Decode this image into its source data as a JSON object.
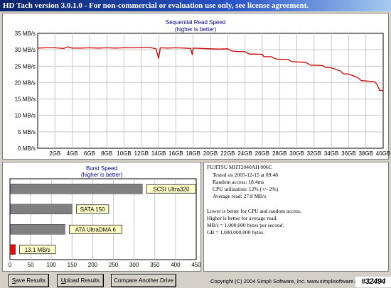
{
  "window": {
    "title": "HD Tach version 3.0.1.0  - For non-commercial or evaluation use only, see license agreement."
  },
  "read_chart": {
    "title": "Sequential Read Speed",
    "subtitle": "(higher is better)"
  },
  "burst_chart": {
    "title": "Burst Speed",
    "subtitle": "(higher is better)"
  },
  "info": {
    "drive": "FUJITSU MHT2040AH 006C",
    "tested_on": "Tested on 2005-12-15 at 09:48",
    "random_access": "Random access: 18.4ms",
    "cpu": "CPU utilization: 12% (+/- 2%)",
    "average_read": "Average read: 27.8 MB/s",
    "note1": "Lower is better for CPU and random access.",
    "note2": "Higher is better for average read.",
    "note3": "MB/s = 1,000,000 bytes per second.",
    "note4": "GB = 1,000,000,000 bytes."
  },
  "buttons": {
    "save_first": "S",
    "save_rest": "ave Results",
    "upload_first": "U",
    "upload_rest": "pload Results",
    "compare": "Compare Another Drive"
  },
  "footer": {
    "copyright": "Copyright (C) 2004 Simpli Software, Inc. www.simplisoftware.com",
    "stamp": "#32494"
  },
  "chart_data": [
    {
      "type": "line",
      "title": "Sequential Read Speed",
      "subtitle": "(higher is better)",
      "x_unit": "GB",
      "xlim": [
        0,
        40
      ],
      "x_ticks": [
        2,
        4,
        6,
        8,
        10,
        12,
        14,
        16,
        18,
        20,
        22,
        24,
        26,
        28,
        30,
        32,
        34,
        36,
        38,
        40
      ],
      "x_tick_labels": [
        "2GB",
        "4GB",
        "6GB",
        "8GB",
        "10GB",
        "12GB",
        "14GB",
        "16GB",
        "18GB",
        "20GB",
        "22GB",
        "24GB",
        "26GB",
        "28GB",
        "30GB",
        "32GB",
        "34GB",
        "36GB",
        "38GB",
        "40GB"
      ],
      "ylim": [
        0,
        35
      ],
      "y_ticks": [
        0,
        5,
        10,
        15,
        20,
        25,
        30,
        35
      ],
      "y_tick_labels": [
        "0 MB/s",
        "5 MB/s",
        "10 MB/s",
        "15 MB/s",
        "20 MB/s",
        "25 MB/s",
        "30 MB/s",
        "35 MB/s"
      ],
      "grid": true,
      "series": [
        {
          "color": "#cc0000",
          "x": [
            0,
            1,
            2,
            3,
            3.5,
            4,
            5,
            6,
            7,
            8,
            9,
            10,
            11,
            12,
            13,
            13.7,
            14,
            14.2,
            15,
            16,
            17,
            17.7,
            17.9,
            18,
            19,
            20,
            21,
            22,
            22.5,
            23,
            24,
            24.5,
            25,
            26,
            26.2,
            27,
            27.6,
            28,
            29,
            29.4,
            30,
            31,
            31.6,
            32,
            33,
            33.3,
            34,
            35,
            35.4,
            36,
            37,
            37.5,
            38,
            39,
            39.3,
            39.6,
            40
          ],
          "y": [
            30.5,
            30.6,
            30.6,
            30.4,
            30.9,
            30.5,
            30.5,
            30.6,
            30.5,
            30.6,
            30.5,
            30.6,
            30.6,
            30.7,
            30.7,
            30.3,
            27.3,
            30.6,
            30.5,
            30.6,
            30.5,
            30.4,
            28.5,
            30.5,
            30.4,
            30.3,
            30.2,
            30.3,
            29.6,
            29.5,
            29.4,
            28.7,
            28.7,
            28.6,
            27.9,
            27.9,
            27.2,
            27.1,
            27.1,
            26.4,
            26.3,
            26.2,
            25.3,
            25.3,
            25.2,
            24.6,
            24.5,
            23.6,
            22.7,
            22.6,
            21.6,
            20.6,
            20.5,
            20.3,
            19.4,
            17.6,
            17.6
          ]
        }
      ]
    },
    {
      "type": "bar",
      "title": "Burst Speed",
      "subtitle": "(higher is better)",
      "orientation": "horizontal",
      "xlim": [
        0,
        450
      ],
      "x_ticks": [
        0,
        50,
        100,
        150,
        200,
        250,
        300,
        350,
        400,
        450
      ],
      "x_tick_labels": [
        "0",
        "50",
        "100",
        "150",
        "200",
        "250",
        "300",
        "350",
        "400",
        "450"
      ],
      "grid": true,
      "categories": [
        "SCSI Ultra320",
        "SATA 150",
        "ATA UltraDMA 6",
        "13.1 MB/s"
      ],
      "values": [
        320,
        150,
        133,
        13.1
      ],
      "colors": [
        "#808080",
        "#808080",
        "#808080",
        "#ff0000"
      ]
    }
  ]
}
